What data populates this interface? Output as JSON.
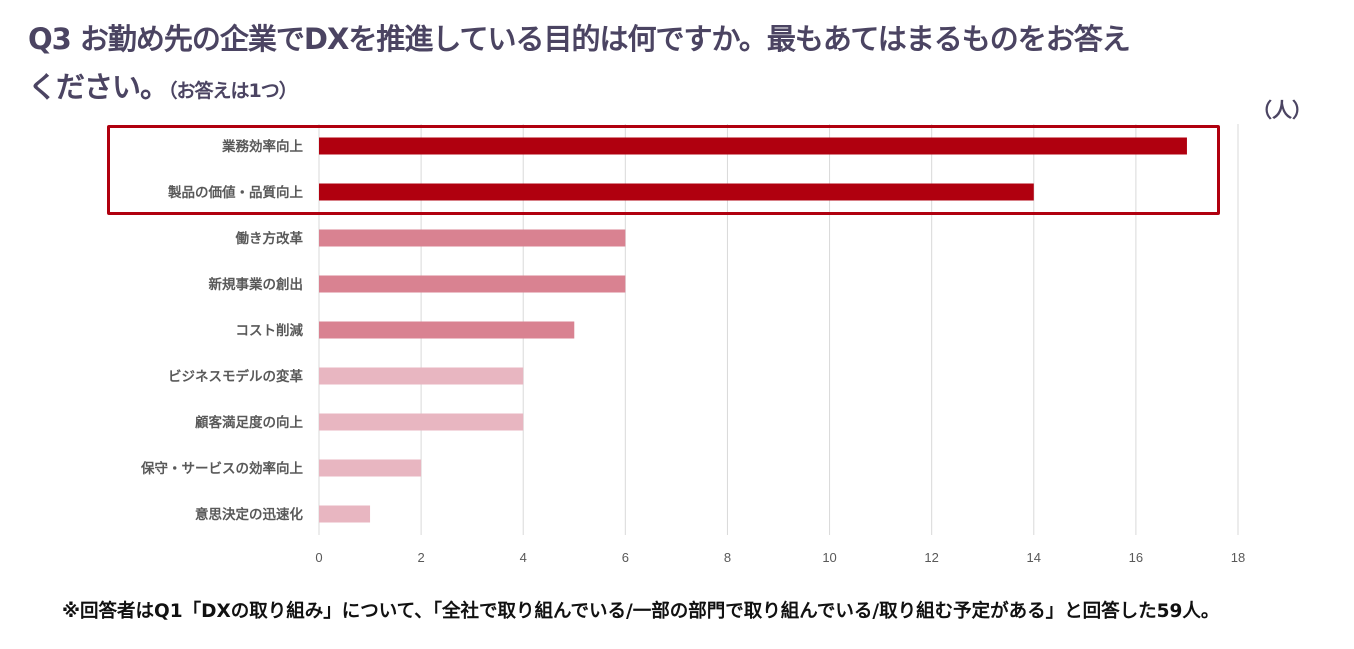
{
  "title": {
    "line1": "Q3  お勤め先の企業でDXを推進している目的は何ですか。最もあてはまるものをお答え",
    "line2": "ください。",
    "line2_note": "（お答えは1つ）"
  },
  "unit_label": "（人）",
  "footnote": "※回答者はQ1「DXの取り組み」について、「全社で取り組んでいる/一部の部門で取り組んでいる/取り組む予定がある」と回答した59人。",
  "chart_data": {
    "type": "bar",
    "orientation": "horizontal",
    "categories": [
      "業務効率向上",
      "製品の価値・品質向上",
      "働き方改革",
      "新規事業の創出",
      "コスト削減",
      "ビジネスモデルの変革",
      "顧客満足度の向上",
      "保守・サービスの効率向上",
      "意思決定の迅速化"
    ],
    "values": [
      17,
      14,
      6,
      6,
      5,
      4,
      4,
      2,
      1
    ],
    "colors": [
      "#b0000f",
      "#b0000f",
      "#d98291",
      "#d98291",
      "#d98291",
      "#e8b6c1",
      "#e8b6c1",
      "#e8b6c1",
      "#e8b6c1"
    ],
    "xlim": [
      0,
      18
    ],
    "xticks": [
      0,
      2,
      4,
      6,
      8,
      10,
      12,
      14,
      16,
      18
    ],
    "grid": "vertical",
    "highlight_box_categories": [
      "業務効率向上",
      "製品の価値・品質向上"
    ],
    "highlight_color": "#b0000f"
  }
}
